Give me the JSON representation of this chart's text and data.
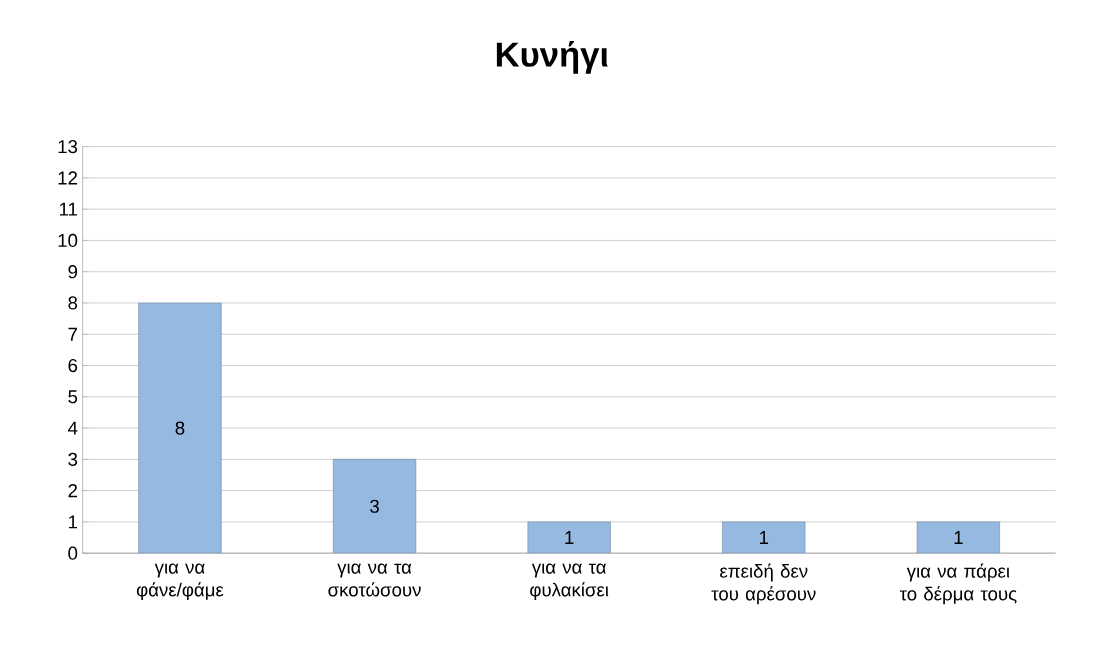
{
  "chart_data": {
    "type": "bar",
    "title": "Κυνήγι",
    "categories": [
      "για να φάνε/φάμε",
      "για να τα σκοτώσουν",
      "για να τα φυλακίσει",
      "επειδή δεν του αρέσουν",
      "για να πάρει το δέρμα τους"
    ],
    "values": [
      8,
      3,
      1,
      1,
      1
    ],
    "color": "#95b9e0",
    "ylim": [
      0,
      13
    ],
    "yticks": [
      0,
      1,
      2,
      3,
      4,
      5,
      6,
      7,
      8,
      9,
      10,
      11,
      12,
      13
    ],
    "grid": "y",
    "data_labels": true
  }
}
